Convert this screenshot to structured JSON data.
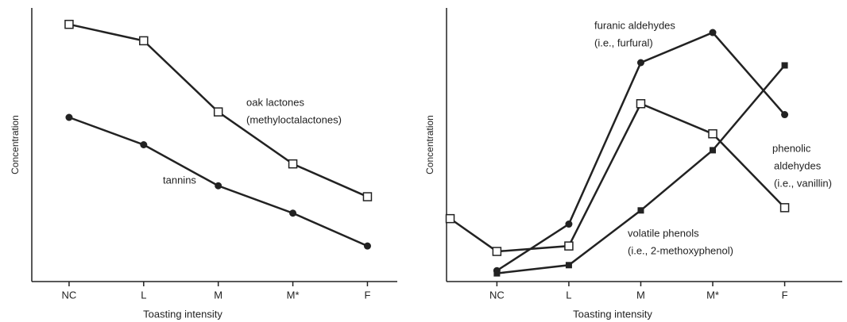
{
  "chart_data": [
    {
      "type": "line",
      "ylabel": "Concentration",
      "xlabel": "Toasting intensity",
      "xlim": [
        0.5,
        5.4
      ],
      "ylim": [
        0,
        100
      ],
      "xticks": [
        {
          "value": 1,
          "label": "NC"
        },
        {
          "value": 2,
          "label": "L"
        },
        {
          "value": 3,
          "label": "M"
        },
        {
          "value": 4,
          "label": "M*"
        },
        {
          "value": 5,
          "label": "F"
        }
      ],
      "series": [
        {
          "label": [
            "oak lactones",
            "(methyloctalactones)"
          ],
          "marker": "open-square",
          "color": "#222222",
          "x": [
            1,
            2,
            3,
            4,
            5
          ],
          "values": [
            94,
            88,
            62,
            43,
            31
          ]
        },
        {
          "label": [
            "tannins"
          ],
          "marker": "filled-circle",
          "color": "#222222",
          "x": [
            1,
            2,
            3,
            4,
            5
          ],
          "values": [
            60,
            50,
            35,
            25,
            13
          ]
        }
      ]
    },
    {
      "type": "line",
      "ylabel": "Concentration",
      "xlabel": "Toasting intensity",
      "xlim": [
        0.3,
        5.8
      ],
      "ylim": [
        0,
        100
      ],
      "xticks": [
        {
          "value": 1,
          "label": "NC"
        },
        {
          "value": 2,
          "label": "L"
        },
        {
          "value": 3,
          "label": "M"
        },
        {
          "value": 4,
          "label": "M*"
        },
        {
          "value": 5,
          "label": "F"
        }
      ],
      "series": [
        {
          "label": [
            "furanic aldehydes",
            "(i.e., furfural)"
          ],
          "marker": "filled-circle",
          "color": "#222222",
          "x": [
            1,
            2,
            3,
            4,
            5
          ],
          "values": [
            4,
            21,
            80,
            91,
            61
          ]
        },
        {
          "label": [
            "phenolic",
            "aldehydes",
            "(i.e., vanillin)"
          ],
          "marker": "open-square",
          "color": "#222222",
          "x": [
            0.35,
            1,
            2,
            3,
            4,
            5
          ],
          "values": [
            23,
            11,
            13,
            65,
            54,
            27
          ]
        },
        {
          "label": [
            "volatile phenols",
            "(i.e., 2-methoxyphenol)"
          ],
          "marker": "filled-square",
          "color": "#222222",
          "x": [
            1,
            2,
            3,
            4,
            5
          ],
          "values": [
            3,
            6,
            26,
            48,
            79
          ]
        }
      ]
    }
  ]
}
